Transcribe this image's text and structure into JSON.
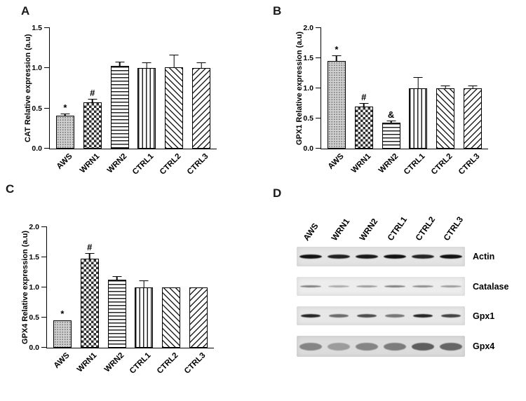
{
  "panels": {
    "A": "A",
    "B": "B",
    "C": "C",
    "D": "D"
  },
  "chart_data": [
    {
      "type": "bar",
      "panel": "A",
      "title": "",
      "xlabel": "",
      "ylabel": "CAT Relative expression (a.u)",
      "categories": [
        "AWS",
        "WRN1",
        "WRN2",
        "CTRL1",
        "CTRL2",
        "CTRL3"
      ],
      "values": [
        0.41,
        0.58,
        1.03,
        1.0,
        1.01,
        1.0
      ],
      "errors": [
        0.02,
        0.03,
        0.04,
        0.06,
        0.15,
        0.06
      ],
      "annotations": [
        "*",
        "#",
        "",
        "",
        "",
        ""
      ],
      "ylim": [
        0,
        1.5
      ],
      "ytick_step": 0.5,
      "grid": false,
      "legend": false,
      "patterns": [
        "dots",
        "checker",
        "hlines",
        "vlines",
        "diag-up",
        "diag-down"
      ]
    },
    {
      "type": "bar",
      "panel": "B",
      "title": "",
      "xlabel": "",
      "ylabel": "GPX1 Relative expression (a.u)",
      "categories": [
        "AWS",
        "WRN1",
        "WRN2",
        "CTRL1",
        "CTRL2",
        "CTRL3"
      ],
      "values": [
        1.45,
        0.7,
        0.43,
        1.0,
        1.0,
        1.0
      ],
      "errors": [
        0.08,
        0.05,
        0.02,
        0.17,
        0.03,
        0.03
      ],
      "annotations": [
        "*",
        "#",
        "&",
        "",
        "",
        ""
      ],
      "ylim": [
        0,
        2.0
      ],
      "ytick_step": 0.5,
      "grid": false,
      "legend": false,
      "patterns": [
        "dots",
        "checker",
        "hlines",
        "vlines",
        "diag-up",
        "diag-down"
      ]
    },
    {
      "type": "bar",
      "panel": "C",
      "title": "",
      "xlabel": "",
      "ylabel": "GPX4 Relative expression (a.u)",
      "categories": [
        "AWS",
        "WRN1",
        "WRN2",
        "CTRL1",
        "CTRL2",
        "CTRL3"
      ],
      "values": [
        0.45,
        1.48,
        1.13,
        1.0,
        1.0,
        1.0
      ],
      "errors": [
        0.0,
        0.08,
        0.04,
        0.1,
        0.0,
        0.0
      ],
      "annotations": [
        "*",
        "#",
        "",
        "",
        "",
        ""
      ],
      "ylim": [
        0,
        2.0
      ],
      "ytick_step": 0.5,
      "grid": false,
      "legend": false,
      "patterns": [
        "dots",
        "checker",
        "hlines",
        "vlines",
        "diag-up",
        "diag-down"
      ]
    }
  ],
  "blot": {
    "samples": [
      "AWS",
      "WRN1",
      "WRN2",
      "CTRL1",
      "CTRL2",
      "CTRL3"
    ],
    "rows": [
      {
        "label": "Actin",
        "bg": "#e4e4e4",
        "strip_height": 28,
        "band_height": 6,
        "band_width": 32,
        "color": "#121212",
        "opacities": [
          1,
          0.92,
          0.96,
          1,
          0.9,
          1
        ]
      },
      {
        "label": "Catalase",
        "bg": "#ededed",
        "strip_height": 27,
        "band_height": 3,
        "band_width": 30,
        "color": "#5a5a5a",
        "opacities": [
          0.75,
          0.45,
          0.55,
          0.75,
          0.65,
          0.55
        ]
      },
      {
        "label": "Gpx1",
        "bg": "#e7e7e7",
        "strip_height": 27,
        "band_height": 5,
        "band_width": 28,
        "color": "#1c1c1c",
        "opacities": [
          0.95,
          0.6,
          0.75,
          0.55,
          0.95,
          0.8
        ]
      },
      {
        "label": "Gpx4",
        "bg": "#dcdcdc",
        "strip_height": 30,
        "band_height": 11,
        "band_width": 32,
        "color": "#3f3f3f",
        "opacities": [
          0.55,
          0.4,
          0.55,
          0.6,
          0.8,
          0.75
        ]
      }
    ]
  }
}
